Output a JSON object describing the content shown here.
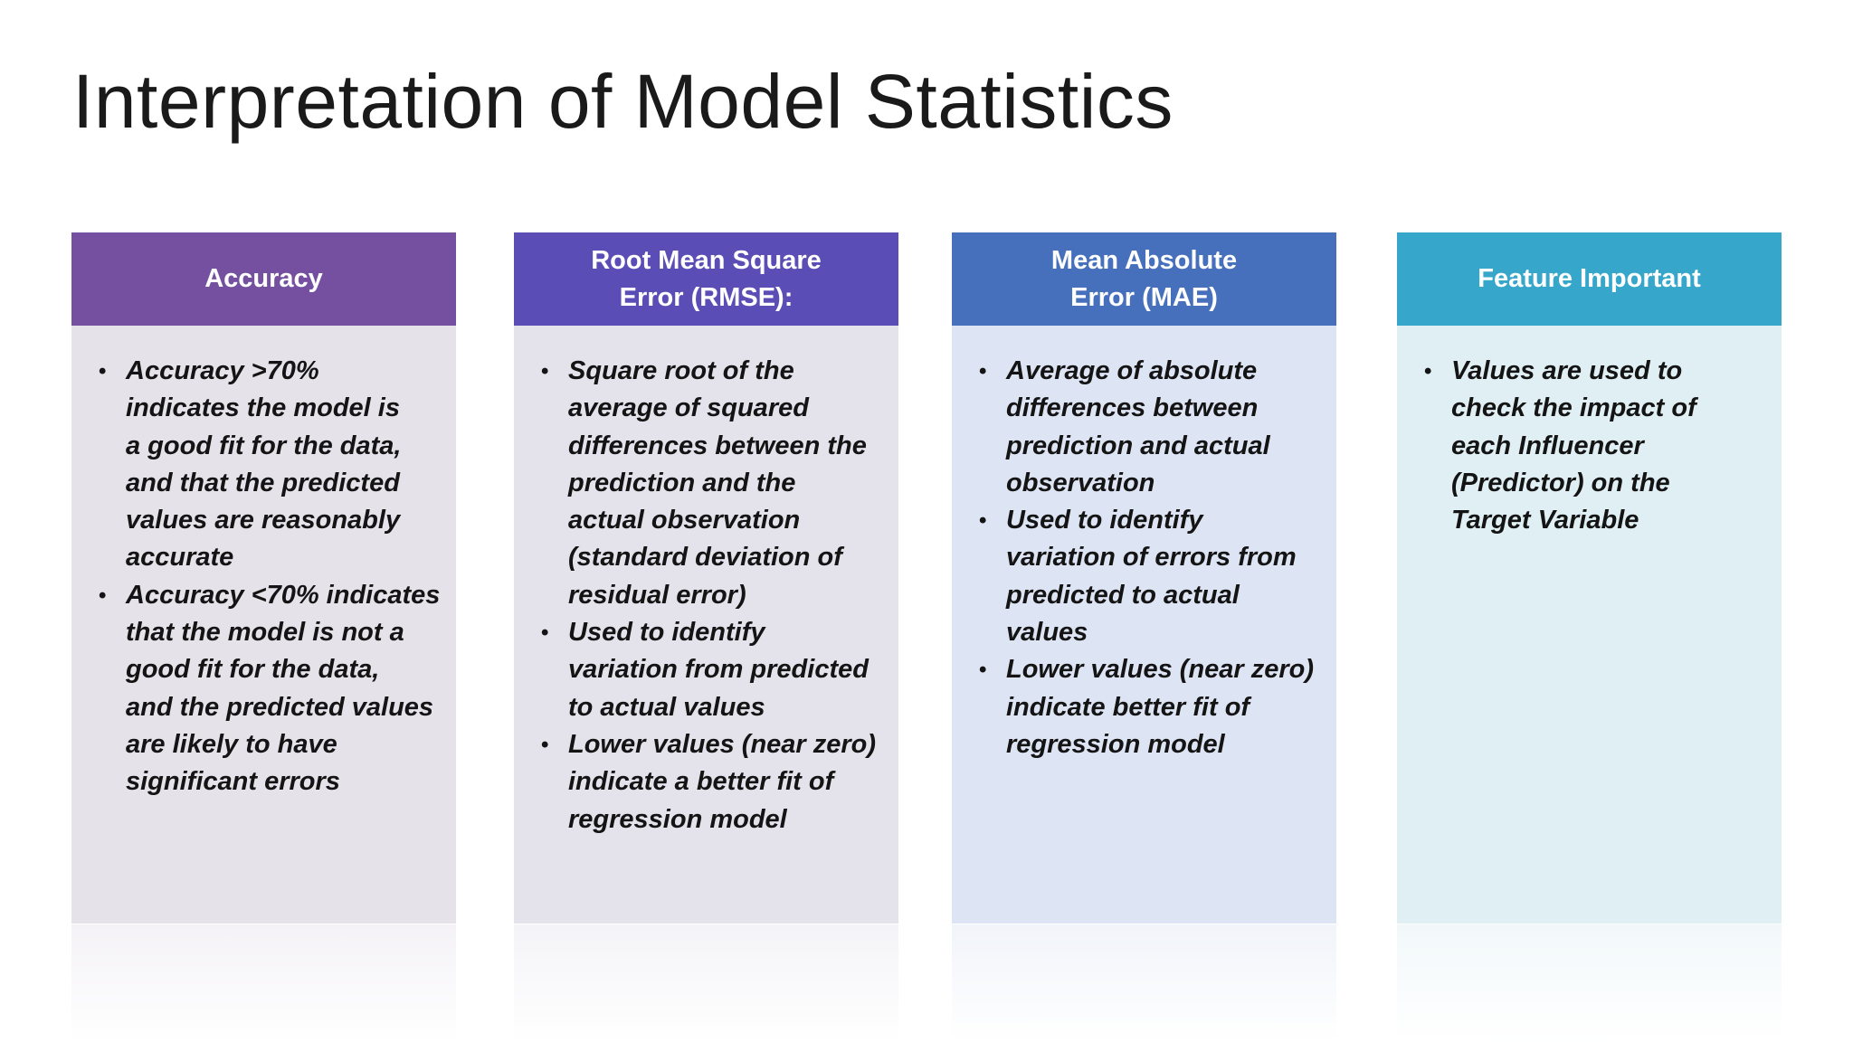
{
  "slide": {
    "title": "Interpretation of Model Statistics"
  },
  "cards": [
    {
      "header": "Accuracy",
      "header_color": "#7550a0",
      "body_color": "#e5e2ea",
      "bullets": [
        "Accuracy >70%\nindicates the model is\na good fit for the data,\nand that the predicted\nvalues are reasonably\naccurate",
        "Accuracy <70% indicates\nthat the model is not a\ngood fit for the data,\nand the predicted values\nare likely to have\nsignificant errors"
      ]
    },
    {
      "header": "Root Mean Square\nError (RMSE):",
      "header_color": "#5a4db5",
      "body_color": "#e4e3ec",
      "bullets": [
        "Square root of the\naverage of squared\ndifferences between the\nprediction and the\nactual observation\n(standard deviation of\nresidual error)",
        "Used to identify\nvariation from predicted\nto actual values",
        "Lower values (near zero)\nindicate a better fit of\nregression model"
      ]
    },
    {
      "header": "Mean Absolute\nError (MAE)",
      "header_color": "#4670bc",
      "body_color": "#dde4f3",
      "bullets": [
        "Average of absolute\ndifferences between\nprediction and actual\nobservation",
        "Used to identify\nvariation of errors from\npredicted to actual\nvalues",
        "Lower values (near zero)\nindicate better fit of\nregression model"
      ]
    },
    {
      "header": "Feature Important",
      "header_color": "#36a6cb",
      "body_color": "#e0eff4",
      "bullets": [
        "Values are used to\ncheck the impact of\neach Influencer\n(Predictor) on the\nTarget Variable"
      ]
    }
  ]
}
